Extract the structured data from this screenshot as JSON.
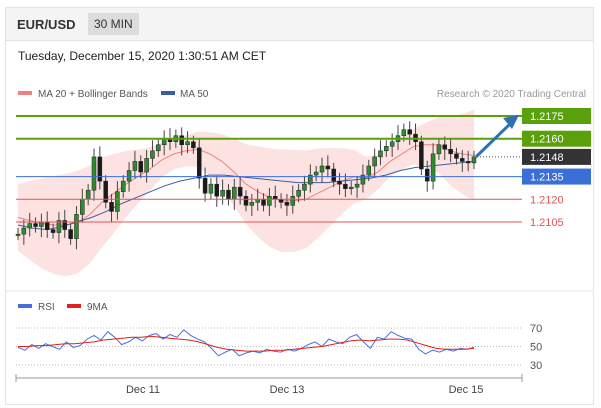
{
  "header": {
    "pair": "EUR/USD",
    "timeframe": "30 MIN"
  },
  "timestamp": "Tuesday, December 15, 2020 1:30:51 AM CET",
  "credit": "Research © 2020 Trading Central",
  "colors": {
    "support_resistance": "#e05555",
    "target": "#5aa00a",
    "pivot": "#3a6fd8",
    "current": "#333333",
    "arrow": "#2f6fb5",
    "ma20": "#f08080",
    "ma50": "#3a5fa0",
    "bands": "#fcd8d8",
    "rsi": "#4a6fdc",
    "rsi_ma": "#e02020"
  },
  "chart_data": [
    {
      "type": "candlestick",
      "legend": [
        "MA 20 + Bollinger Bands",
        "MA 50"
      ],
      "x_ticks": [
        "Dec 11",
        "Dec 13",
        "Dec 15"
      ],
      "ylim": [
        2.0925,
        1.2195
      ],
      "levels": [
        {
          "label": "1.2175",
          "value": 1.2175,
          "kind": "target"
        },
        {
          "label": "1.2160",
          "value": 1.216,
          "kind": "target"
        },
        {
          "label": "1.2148",
          "value": 1.2148,
          "kind": "current"
        },
        {
          "label": "1.2135",
          "value": 1.2135,
          "kind": "pivot"
        },
        {
          "label": "1.2120",
          "value": 1.212,
          "kind": "support"
        },
        {
          "label": "1.2105",
          "value": 1.2105,
          "kind": "support"
        }
      ],
      "close_path": [
        1.2097,
        1.2101,
        1.2104,
        1.2102,
        1.2105,
        1.21,
        1.2098,
        1.2106,
        1.21,
        1.2094,
        1.211,
        1.212,
        1.2126,
        1.2148,
        1.2132,
        1.2118,
        1.2112,
        1.2125,
        1.2132,
        1.2139,
        1.2145,
        1.2138,
        1.2147,
        1.2152,
        1.2156,
        1.216,
        1.2158,
        1.2162,
        1.2156,
        1.2158,
        1.2154,
        1.2134,
        1.2124,
        1.213,
        1.2122,
        1.2126,
        1.212,
        1.2128,
        1.2122,
        1.2116,
        1.2118,
        1.212,
        1.2116,
        1.2122,
        1.212,
        1.2118,
        1.2116,
        1.2122,
        1.2126,
        1.213,
        1.2136,
        1.2138,
        1.2142,
        1.214,
        1.2132,
        1.213,
        1.2127,
        1.2128,
        1.213,
        1.2136,
        1.2142,
        1.2148,
        1.2152,
        1.2155,
        1.2158,
        1.2162,
        1.2166,
        1.2163,
        1.2158,
        1.214,
        1.2132,
        1.215,
        1.2156,
        1.2153,
        1.215,
        1.2147,
        1.2145,
        1.2144,
        1.2148
      ],
      "ma20": [
        1.2108,
        1.2106,
        1.2104,
        1.2103,
        1.2103,
        1.2105,
        1.211,
        1.2118,
        1.2124,
        1.213,
        1.2135,
        1.214,
        1.2146,
        1.215,
        1.2152,
        1.2153,
        1.215,
        1.2145,
        1.2138,
        1.213,
        1.2125,
        1.2121,
        1.2119,
        1.2119,
        1.212,
        1.2124,
        1.2128,
        1.2132,
        1.2135,
        1.2134,
        1.2138,
        1.2145,
        1.215,
        1.2155,
        1.2156,
        1.2156,
        1.2152,
        1.215,
        1.2149
      ],
      "ma50": [
        1.2103,
        1.2101,
        1.21,
        1.2102,
        1.2105,
        1.2108,
        1.2112,
        1.2117,
        1.2121,
        1.2125,
        1.2129,
        1.2132,
        1.2134,
        1.2136,
        1.2136,
        1.2135,
        1.2134,
        1.2133,
        1.2132,
        1.2131,
        1.2131,
        1.2131,
        1.2132,
        1.2133,
        1.2134,
        1.2136,
        1.2139,
        1.2141,
        1.2142,
        1.2143,
        1.2144,
        1.2145
      ],
      "projection": {
        "from": 1.2148,
        "to": 1.2175
      }
    },
    {
      "type": "line",
      "legend": [
        "RSI",
        "9MA"
      ],
      "y_ticks": [
        "70",
        "50",
        "30"
      ],
      "ylim": [
        20,
        80
      ],
      "rsi": [
        49,
        46,
        52,
        48,
        53,
        50,
        47,
        55,
        49,
        51,
        58,
        62,
        57,
        66,
        60,
        52,
        55,
        60,
        56,
        62,
        64,
        58,
        63,
        60,
        68,
        62,
        58,
        55,
        48,
        40,
        44,
        47,
        40,
        43,
        45,
        43,
        47,
        45,
        44,
        47,
        45,
        48,
        52,
        55,
        50,
        58,
        55,
        53,
        60,
        63,
        55,
        48,
        60,
        58,
        66,
        62,
        59,
        58,
        47,
        42,
        46,
        44,
        47,
        45,
        48,
        47,
        49
      ],
      "rsi_ma": [
        50,
        50,
        51,
        51,
        52,
        53,
        53,
        54,
        55,
        57,
        58,
        59,
        60,
        60,
        61,
        60,
        59,
        58,
        57,
        55,
        52,
        49,
        47,
        46,
        45,
        45,
        45,
        46,
        46,
        47,
        48,
        49,
        50,
        52,
        54,
        56,
        57,
        56,
        57,
        58,
        58,
        57,
        54,
        51,
        48,
        47,
        47,
        47,
        48
      ]
    }
  ]
}
